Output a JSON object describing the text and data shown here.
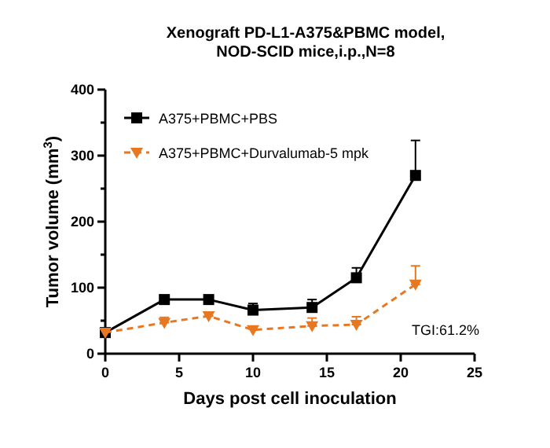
{
  "chart_data": {
    "type": "line",
    "title": "Xenograft PD-L1-A375&PBMC model,\nNOD-SCID mice,i.p.,N=8",
    "xlabel": "Days post cell inoculation",
    "ylabel": "Tumor volume (mm$^{3}$)",
    "x": [
      0,
      4,
      7,
      10,
      14,
      17,
      21
    ],
    "series": [
      {
        "name": "A375+PBMC+PBS",
        "color": "#000000",
        "marker": "square",
        "line_style": "solid",
        "values": [
          32,
          82,
          82,
          66,
          70,
          115,
          270
        ],
        "errors": [
          null,
          [
            82,
            88
          ],
          [
            82,
            85
          ],
          [
            66,
            76
          ],
          [
            70,
            82
          ],
          [
            115,
            130
          ],
          [
            270,
            323
          ]
        ]
      },
      {
        "name": "A375+PBMC+Durvalumab-5 mpk",
        "color": "#e87722",
        "marker": "triangle",
        "line_style": "dashed",
        "values": [
          32,
          47,
          57,
          36,
          42,
          44,
          105
        ],
        "errors": [
          null,
          [
            47,
            55
          ],
          [
            57,
            62
          ],
          null,
          [
            42,
            54
          ],
          [
            44,
            56
          ],
          [
            105,
            133
          ]
        ]
      }
    ],
    "xlim": [
      0,
      25
    ],
    "xticks": [
      0,
      5,
      10,
      15,
      20,
      25
    ],
    "ylim": [
      0,
      400
    ],
    "yticks": [
      0,
      {
        "value": 50,
        "label": null
      },
      100,
      {
        "value": 150,
        "label": null
      },
      200,
      {
        "value": 250,
        "label": null
      },
      300,
      {
        "value": 350,
        "label": null
      },
      400
    ],
    "legend": "top left",
    "annotations": [
      "TGI:61.2%"
    ]
  }
}
